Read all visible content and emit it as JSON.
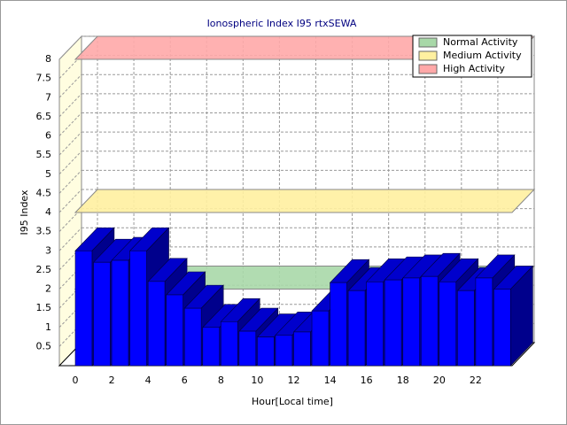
{
  "chart_data": {
    "type": "bar3d",
    "title": "Ionospheric Index I95 rtxSEWA",
    "x_label": "Hour[Local time]",
    "y_label": "I95 Index",
    "x": [
      0,
      1,
      2,
      3,
      4,
      5,
      6,
      7,
      8,
      9,
      10,
      11,
      12,
      13,
      14,
      15,
      16,
      17,
      18,
      19,
      20,
      21,
      22,
      23
    ],
    "values": [
      3.0,
      2.7,
      2.75,
      3.0,
      2.2,
      1.85,
      1.5,
      1.0,
      1.15,
      0.9,
      0.75,
      0.8,
      0.88,
      1.43,
      2.17,
      1.96,
      2.19,
      2.24,
      2.29,
      2.33,
      2.19,
      1.96,
      2.29,
      2.0
    ],
    "color": "#0000ff",
    "xlim": [
      0,
      24
    ],
    "xticks": [
      0,
      2,
      4,
      6,
      8,
      10,
      12,
      14,
      16,
      18,
      20,
      22
    ],
    "ylim": [
      0,
      8
    ],
    "yticks": [
      0.5,
      1,
      1.5,
      2,
      2.5,
      3,
      3.5,
      4,
      4.5,
      5,
      5.5,
      6,
      6.5,
      7,
      7.5,
      8
    ],
    "grid": true,
    "legend": "top-right",
    "bands": [
      {
        "name": "Normal Activity",
        "color": "#a8d8a8",
        "value": 2
      },
      {
        "name": "Medium Activity",
        "color": "#fff0a0",
        "value": 4
      },
      {
        "name": "High Activity",
        "color": "#ffa8a8",
        "value": 8
      }
    ]
  }
}
